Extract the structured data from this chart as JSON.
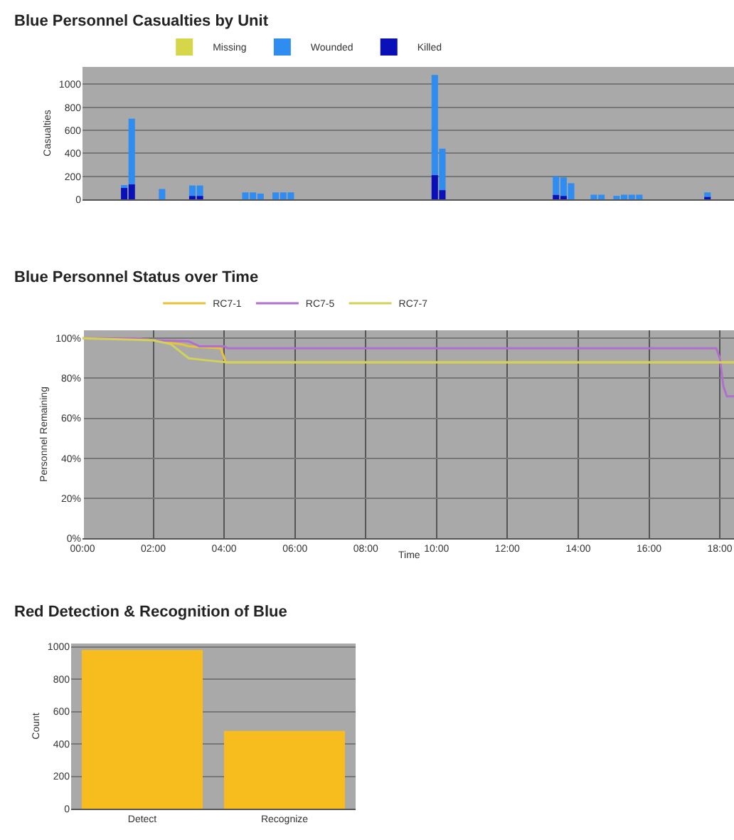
{
  "chart_data": [
    {
      "type": "bar",
      "title": "Blue Personnel Casualties by Unit",
      "ylabel": "Casualties",
      "stacked": true,
      "legend": "top left",
      "grid": "y",
      "tick_labels": "y",
      "categories": [
        null,
        null,
        null,
        null,
        null,
        null,
        null,
        null,
        null,
        null,
        null,
        null,
        null,
        null,
        null,
        null,
        null,
        null,
        null,
        null,
        null,
        null,
        null,
        null,
        null,
        null,
        null,
        null,
        null,
        null,
        null,
        null,
        null,
        null,
        null,
        null,
        null,
        null,
        null,
        null,
        null,
        null,
        null,
        null,
        null,
        null,
        null,
        null,
        null,
        null,
        null,
        null,
        null,
        null,
        null,
        null,
        null,
        null,
        null,
        null,
        null,
        null,
        null,
        null,
        null,
        null,
        null,
        null,
        null,
        null,
        null,
        null,
        null,
        null,
        null,
        null,
        null,
        null,
        null,
        null,
        null,
        null,
        null,
        null,
        null,
        null
      ],
      "ylim": [
        0,
        1150
      ],
      "yticks": [
        0,
        200,
        400,
        600,
        800,
        1000
      ],
      "series": [
        {
          "name": "Killed",
          "color": "#0a10b8",
          "values": [
            0,
            0,
            0,
            0,
            0,
            100,
            130,
            0,
            0,
            0,
            0,
            0,
            0,
            0,
            30,
            30,
            0,
            0,
            0,
            0,
            0,
            0,
            0,
            0,
            0,
            0,
            0,
            0,
            0,
            0,
            0,
            0,
            0,
            0,
            0,
            0,
            0,
            0,
            0,
            0,
            0,
            0,
            0,
            0,
            0,
            0,
            210,
            80,
            0,
            0,
            0,
            0,
            0,
            0,
            0,
            0,
            0,
            0,
            0,
            0,
            0,
            0,
            40,
            30,
            0,
            0,
            0,
            0,
            0,
            0,
            0,
            0,
            0,
            0,
            0,
            0,
            0,
            0,
            0,
            0,
            0,
            0,
            20,
            0,
            0,
            0
          ]
        },
        {
          "name": "Wounded",
          "color": "#2f8cf0",
          "values": [
            0,
            0,
            0,
            0,
            0,
            20,
            570,
            0,
            0,
            0,
            90,
            0,
            0,
            0,
            90,
            90,
            0,
            0,
            0,
            0,
            0,
            60,
            60,
            50,
            0,
            60,
            60,
            60,
            0,
            0,
            0,
            0,
            0,
            0,
            0,
            0,
            0,
            0,
            0,
            0,
            0,
            0,
            0,
            0,
            0,
            0,
            870,
            360,
            0,
            0,
            0,
            0,
            0,
            0,
            0,
            0,
            0,
            0,
            0,
            0,
            0,
            0,
            160,
            160,
            140,
            0,
            0,
            40,
            40,
            0,
            30,
            40,
            40,
            40,
            0,
            0,
            0,
            0,
            0,
            0,
            0,
            0,
            40,
            0,
            0,
            0
          ]
        },
        {
          "name": "Missing",
          "color": "#d6d64a",
          "values": [
            0,
            0,
            0,
            0,
            0,
            0,
            0,
            0,
            0,
            0,
            0,
            0,
            0,
            0,
            0,
            0,
            0,
            0,
            0,
            0,
            0,
            0,
            0,
            0,
            0,
            0,
            0,
            0,
            0,
            0,
            0,
            0,
            0,
            0,
            0,
            0,
            0,
            0,
            0,
            0,
            0,
            0,
            0,
            0,
            0,
            0,
            0,
            0,
            0,
            0,
            0,
            0,
            0,
            0,
            0,
            0,
            0,
            0,
            0,
            0,
            0,
            0,
            0,
            0,
            0,
            0,
            0,
            0,
            0,
            0,
            0,
            0,
            0,
            0,
            0,
            0,
            0,
            0,
            0,
            0,
            0,
            0,
            0,
            0,
            0,
            0
          ]
        }
      ]
    },
    {
      "type": "line",
      "title": "Blue Personnel Status over Time",
      "xlabel": "Time",
      "ylabel": "Personnel Remaining",
      "legend": "top left",
      "grid": true,
      "marker": "none",
      "line_style": "solid",
      "xlim": [
        0,
        18.4
      ],
      "xticks": [
        {
          "value": 0,
          "label": "00:00"
        },
        {
          "value": 2,
          "label": "02:00"
        },
        {
          "value": 4,
          "label": "04:00"
        },
        {
          "value": 6,
          "label": "06:00"
        },
        {
          "value": 8,
          "label": "08:00"
        },
        {
          "value": 10,
          "label": "10:00"
        },
        {
          "value": 12,
          "label": "12:00"
        },
        {
          "value": 14,
          "label": "14:00"
        },
        {
          "value": 16,
          "label": "16:00"
        },
        {
          "value": 18,
          "label": "18:00"
        }
      ],
      "ylim": [
        0,
        104
      ],
      "yticks": [
        {
          "value": 0,
          "label": "0%"
        },
        {
          "value": 20,
          "label": "20%"
        },
        {
          "value": 40,
          "label": "40%"
        },
        {
          "value": 60,
          "label": "60%"
        },
        {
          "value": 80,
          "label": "80%"
        },
        {
          "value": 100,
          "label": "100%"
        }
      ],
      "series": [
        {
          "name": "RC7-1",
          "color": "#e8c23a",
          "x": [
            0,
            1.5,
            2,
            2.8,
            3.0,
            3.9,
            4.05,
            5,
            18.4
          ],
          "values": [
            100,
            100,
            99,
            97,
            96,
            95,
            88,
            88,
            88
          ]
        },
        {
          "name": "RC7-5",
          "color": "#b070cc",
          "x": [
            0,
            1.5,
            2,
            3.0,
            3.3,
            4.0,
            4.1,
            17.9,
            18.0,
            18.1,
            18.2,
            18.4
          ],
          "values": [
            100,
            100,
            99,
            98.5,
            96,
            96,
            95,
            95,
            90,
            76,
            71,
            71
          ]
        },
        {
          "name": "RC7-7",
          "color": "#d2d25a",
          "x": [
            0,
            2,
            2.5,
            3.0,
            3.5,
            4.1,
            18.4
          ],
          "values": [
            100,
            99,
            97,
            90,
            89,
            88,
            88
          ]
        }
      ]
    },
    {
      "type": "bar",
      "title": "Red Detection & Recognition of Blue",
      "ylabel": "Count",
      "grid": "y",
      "legend": false,
      "categories": [
        "Detect",
        "Recognize"
      ],
      "values": [
        980,
        480
      ],
      "colors": [
        "#f7bd1f",
        "#f7bd1f"
      ],
      "ylim": [
        0,
        1020
      ],
      "yticks": [
        0,
        200,
        400,
        600,
        800,
        1000
      ]
    }
  ]
}
